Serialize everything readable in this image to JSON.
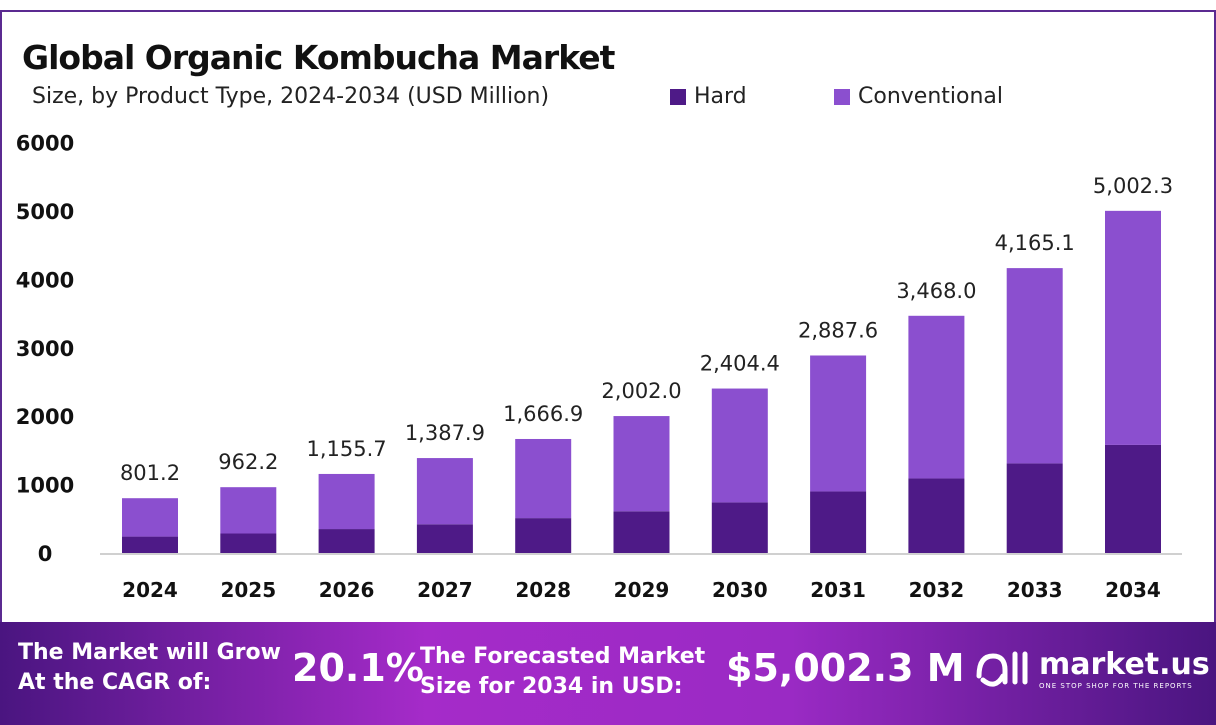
{
  "chart_data": {
    "type": "bar",
    "stacked": true,
    "title": "Global Organic Kombucha Market",
    "subtitle": "Size, by Product Type, 2024-2034 (USD Million)",
    "categories": [
      "2024",
      "2025",
      "2026",
      "2027",
      "2028",
      "2029",
      "2030",
      "2031",
      "2032",
      "2033",
      "2034"
    ],
    "totals": [
      "801.2",
      "962.2",
      "1,155.7",
      "1,387.9",
      "1,666.9",
      "2,002.0",
      "2,404.4",
      "2,887.6",
      "3,468.0",
      "4,165.1",
      "5,002.3"
    ],
    "total_values": [
      801.2,
      962.2,
      1155.7,
      1387.9,
      1666.9,
      2002.0,
      2404.4,
      2887.6,
      3468.0,
      4165.1,
      5002.3
    ],
    "series": [
      {
        "name": "Hard",
        "color": "#4e1a87",
        "values": [
          240,
          285,
          350,
          420,
          510,
          610,
          740,
          900,
          1090,
          1310,
          1580
        ]
      },
      {
        "name": "Conventional",
        "color": "#8b4fcf",
        "values": [
          561.2,
          677.2,
          805.7,
          967.9,
          1156.9,
          1392.0,
          1664.4,
          1987.6,
          2378.0,
          2855.1,
          3422.3
        ]
      }
    ],
    "yticks": [
      "0",
      "1000",
      "2000",
      "3000",
      "4000",
      "5000",
      "6000"
    ],
    "ylim": [
      0,
      6000
    ],
    "grid": false,
    "legend": "top"
  },
  "footer": {
    "cagr_label_1": "The Market will Grow",
    "cagr_label_2": "At the CAGR of:",
    "cagr": "20.1%",
    "forecast_label_1": "The Forecasted Market",
    "forecast_label_2": "Size for 2034 in USD:",
    "forecast": "$5,002.3 M",
    "brand": "market.us",
    "tagline": "ONE STOP SHOP FOR THE REPORTS"
  }
}
